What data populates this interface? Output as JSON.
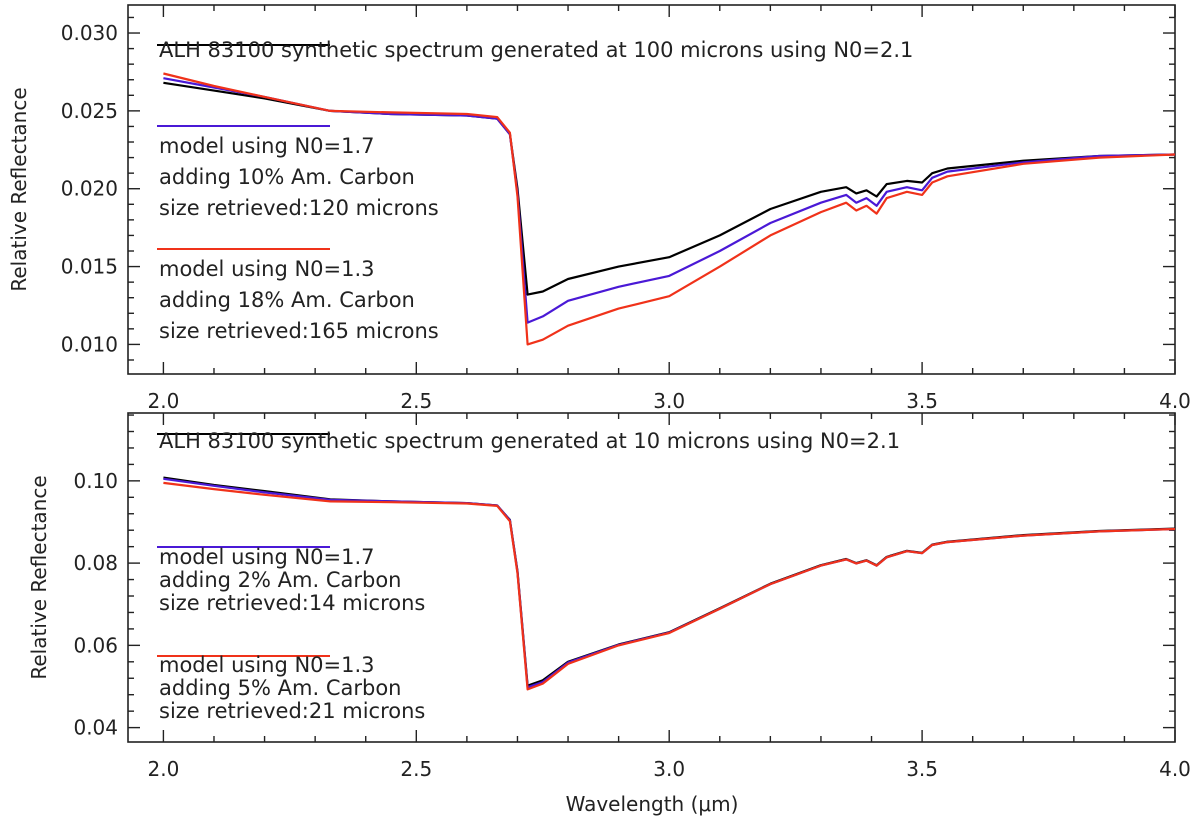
{
  "colors": {
    "reference": "#000000",
    "n0_17": "#4a19d6",
    "n0_13": "#f0321a",
    "axis": "#222222"
  },
  "chart_data": [
    {
      "type": "line",
      "panel": "top",
      "xlabel": "",
      "ylabel": "Relative Reflectance",
      "xlim": [
        1.93,
        4.0
      ],
      "ylim": [
        0.0081,
        0.0318
      ],
      "xticks": [
        2.0,
        2.5,
        3.0,
        3.5,
        4.0
      ],
      "xtick_labels": [
        "2.0",
        "2.5",
        "3.0",
        "3.5",
        "4.0"
      ],
      "yticks": [
        0.01,
        0.015,
        0.02,
        0.025,
        0.03
      ],
      "ytick_labels": [
        "0.010",
        "0.015",
        "0.020",
        "0.025",
        "0.030"
      ],
      "legend": [
        {
          "color_key": "reference",
          "lines": [
            "ALH 83100 synthetic spectrum generated at 100 microns using N0=2.1"
          ]
        },
        {
          "color_key": "n0_17",
          "lines": [
            "model using N0=1.7",
            "adding 10% Am. Carbon",
            "size retrieved:120 microns"
          ]
        },
        {
          "color_key": "n0_13",
          "lines": [
            "model using N0=1.3",
            "adding 18% Am. Carbon",
            "size retrieved:165 microns"
          ]
        }
      ],
      "x": [
        2.0,
        2.1,
        2.2,
        2.33,
        2.45,
        2.6,
        2.66,
        2.685,
        2.7,
        2.72,
        2.75,
        2.8,
        2.9,
        3.0,
        3.1,
        3.2,
        3.3,
        3.35,
        3.37,
        3.39,
        3.41,
        3.43,
        3.47,
        3.5,
        3.52,
        3.55,
        3.7,
        3.85,
        4.0
      ],
      "series": [
        {
          "name": "ALH 83100 synthetic spectrum (100 microns, N0=2.1)",
          "color_key": "reference",
          "values": [
            0.0268,
            0.0263,
            0.0258,
            0.025,
            0.0248,
            0.0247,
            0.0245,
            0.0235,
            0.02,
            0.0132,
            0.0134,
            0.0142,
            0.015,
            0.0156,
            0.017,
            0.0187,
            0.0198,
            0.0201,
            0.0197,
            0.0199,
            0.0195,
            0.0203,
            0.0205,
            0.0204,
            0.021,
            0.0213,
            0.0218,
            0.0221,
            0.0222
          ]
        },
        {
          "name": "model using N0=1.7",
          "color_key": "n0_17",
          "values": [
            0.0271,
            0.0265,
            0.0259,
            0.025,
            0.0248,
            0.0247,
            0.0245,
            0.0235,
            0.0197,
            0.0114,
            0.0118,
            0.0128,
            0.0137,
            0.0144,
            0.016,
            0.0178,
            0.0191,
            0.0196,
            0.0191,
            0.0194,
            0.0189,
            0.0198,
            0.0201,
            0.0199,
            0.0207,
            0.0211,
            0.0217,
            0.0221,
            0.0222
          ]
        },
        {
          "name": "model using N0=1.3",
          "color_key": "n0_13",
          "values": [
            0.0274,
            0.0266,
            0.0259,
            0.025,
            0.0249,
            0.0248,
            0.0246,
            0.0236,
            0.0195,
            0.01,
            0.0103,
            0.0112,
            0.0123,
            0.0131,
            0.015,
            0.017,
            0.0185,
            0.0191,
            0.0186,
            0.0189,
            0.0184,
            0.0194,
            0.0198,
            0.0196,
            0.0204,
            0.0208,
            0.0216,
            0.022,
            0.0222
          ]
        }
      ]
    },
    {
      "type": "line",
      "panel": "bottom",
      "xlabel": "Wavelength (μm)",
      "ylabel": "Relative Reflectance",
      "xlim": [
        1.93,
        4.0
      ],
      "ylim": [
        0.0365,
        0.1165
      ],
      "xticks": [
        2.0,
        2.5,
        3.0,
        3.5,
        4.0
      ],
      "xtick_labels": [
        "2.0",
        "2.5",
        "3.0",
        "3.5",
        "4.0"
      ],
      "yticks": [
        0.04,
        0.06,
        0.08,
        0.1
      ],
      "ytick_labels": [
        "0.04",
        "0.06",
        "0.08",
        "0.10"
      ],
      "legend": [
        {
          "color_key": "reference",
          "lines": [
            "ALH 83100 synthetic spectrum generated at 10 microns using N0=2.1"
          ]
        },
        {
          "color_key": "n0_17",
          "lines": [
            "model using N0=1.7",
            "adding 2% Am. Carbon",
            "size retrieved:14 microns"
          ]
        },
        {
          "color_key": "n0_13",
          "lines": [
            "model using N0=1.3",
            "adding 5% Am. Carbon",
            "size retrieved:21 microns"
          ]
        }
      ],
      "x": [
        2.0,
        2.1,
        2.2,
        2.33,
        2.45,
        2.6,
        2.66,
        2.685,
        2.7,
        2.72,
        2.75,
        2.8,
        2.9,
        3.0,
        3.1,
        3.2,
        3.3,
        3.35,
        3.37,
        3.39,
        3.41,
        3.43,
        3.47,
        3.5,
        3.52,
        3.55,
        3.7,
        3.85,
        4.0
      ],
      "series": [
        {
          "name": "ALH 83100 synthetic spectrum (10 microns, N0=2.1)",
          "color_key": "reference",
          "values": [
            0.1008,
            0.099,
            0.0975,
            0.0955,
            0.095,
            0.0946,
            0.094,
            0.0905,
            0.078,
            0.0502,
            0.0515,
            0.056,
            0.0602,
            0.0632,
            0.069,
            0.075,
            0.0795,
            0.081,
            0.08,
            0.0807,
            0.0795,
            0.0815,
            0.083,
            0.0825,
            0.0845,
            0.0852,
            0.0868,
            0.0878,
            0.0884
          ]
        },
        {
          "name": "model using N0=1.7",
          "color_key": "n0_17",
          "values": [
            0.1005,
            0.0988,
            0.0972,
            0.0954,
            0.095,
            0.0946,
            0.094,
            0.0904,
            0.0778,
            0.0498,
            0.0511,
            0.0558,
            0.0601,
            0.0631,
            0.0689,
            0.0749,
            0.0794,
            0.0809,
            0.0799,
            0.0806,
            0.0794,
            0.0814,
            0.0829,
            0.0824,
            0.0844,
            0.0851,
            0.0867,
            0.0877,
            0.0883
          ]
        },
        {
          "name": "model using N0=1.3",
          "color_key": "n0_13",
          "values": [
            0.0995,
            0.098,
            0.0966,
            0.095,
            0.0948,
            0.0945,
            0.0939,
            0.0902,
            0.0775,
            0.0493,
            0.0507,
            0.0555,
            0.06,
            0.063,
            0.0689,
            0.0749,
            0.0794,
            0.0809,
            0.0799,
            0.0806,
            0.0794,
            0.0814,
            0.0829,
            0.0824,
            0.0844,
            0.0851,
            0.0867,
            0.0877,
            0.0883
          ]
        }
      ]
    }
  ]
}
